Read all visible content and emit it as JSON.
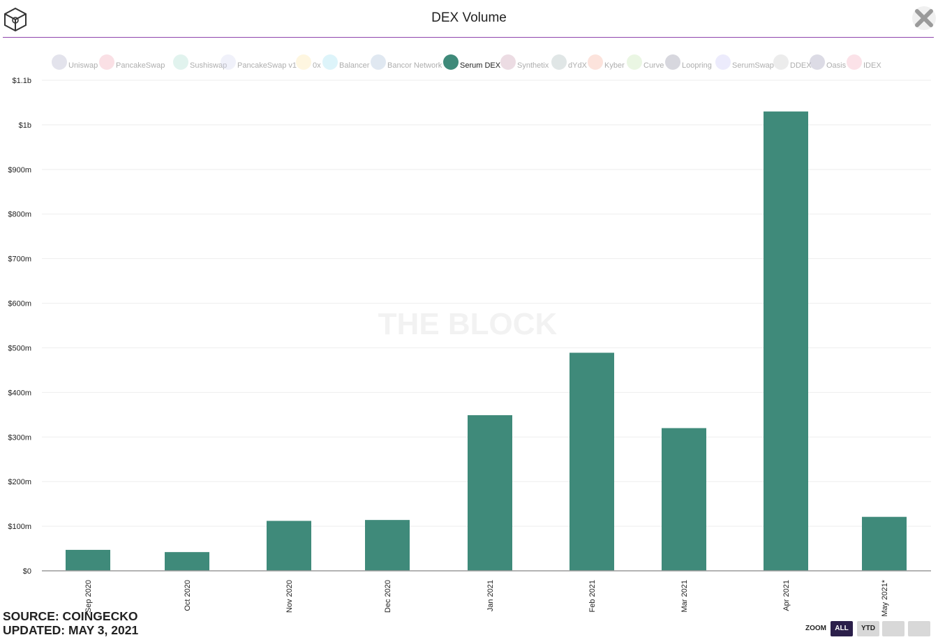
{
  "header": {
    "title": "DEX Volume"
  },
  "watermark": "THE BLOCK",
  "legend": [
    {
      "label": "Uniswap",
      "color": "#b0aec8",
      "active": false
    },
    {
      "label": "PancakeSwap",
      "color": "#f2a7b5",
      "active": false
    },
    {
      "label": "Sushiswap",
      "color": "#a9dccd",
      "active": false
    },
    {
      "label": "PancakeSwap v1",
      "color": "#d4d6f2",
      "active": false
    },
    {
      "label": "0x",
      "color": "#fbe6a6",
      "active": false
    },
    {
      "label": "Balancer",
      "color": "#9ee0f2",
      "active": false
    },
    {
      "label": "Bancor Network",
      "color": "#a6bcd8",
      "active": false
    },
    {
      "label": "Serum DEX",
      "color": "#3f8a7a",
      "active": true
    },
    {
      "label": "Synthetix",
      "color": "#c99aae",
      "active": false
    },
    {
      "label": "dYdX",
      "color": "#a7b8b6",
      "active": false
    },
    {
      "label": "Kyber",
      "color": "#f5b09a",
      "active": false
    },
    {
      "label": "Curve",
      "color": "#c2e6b0",
      "active": false
    },
    {
      "label": "Loopring",
      "color": "#8c8ba0",
      "active": false
    },
    {
      "label": "SerumSwap",
      "color": "#c9c7f7",
      "active": false
    },
    {
      "label": "DDEX",
      "color": "#c8c8c8",
      "active": false
    },
    {
      "label": "Oasis",
      "color": "#9a97b5",
      "active": false
    },
    {
      "label": "IDEX",
      "color": "#f4adbd",
      "active": false
    }
  ],
  "chart_data": {
    "type": "bar",
    "categories": [
      "Sep 2020",
      "Oct 2020",
      "Nov 2020",
      "Dec 2020",
      "Jan 2021",
      "Feb 2021",
      "Mar 2021",
      "Apr 2021",
      "May 2021*"
    ],
    "series": [
      {
        "name": "Serum DEX",
        "color": "#3f8a7a",
        "values": [
          47,
          42,
          112,
          114,
          349,
          489,
          320,
          1030,
          121
        ]
      }
    ],
    "value_unit": "millions USD",
    "ylim": [
      0,
      1100
    ],
    "yticks": [
      0,
      100,
      200,
      300,
      400,
      500,
      600,
      700,
      800,
      900,
      1000,
      1100
    ],
    "ytick_labels": [
      "$0",
      "$100m",
      "$200m",
      "$300m",
      "$400m",
      "$500m",
      "$600m",
      "$700m",
      "$800m",
      "$900m",
      "$1b",
      "$1.1b"
    ],
    "grid": true,
    "legend_position": "top"
  },
  "footer": {
    "source": "SOURCE: COINGECKO",
    "updated": "UPDATED: MAY 3, 2021"
  },
  "zoom": {
    "label": "ZOOM",
    "buttons": [
      "ALL",
      "YTD",
      "",
      ""
    ],
    "active": "ALL"
  }
}
